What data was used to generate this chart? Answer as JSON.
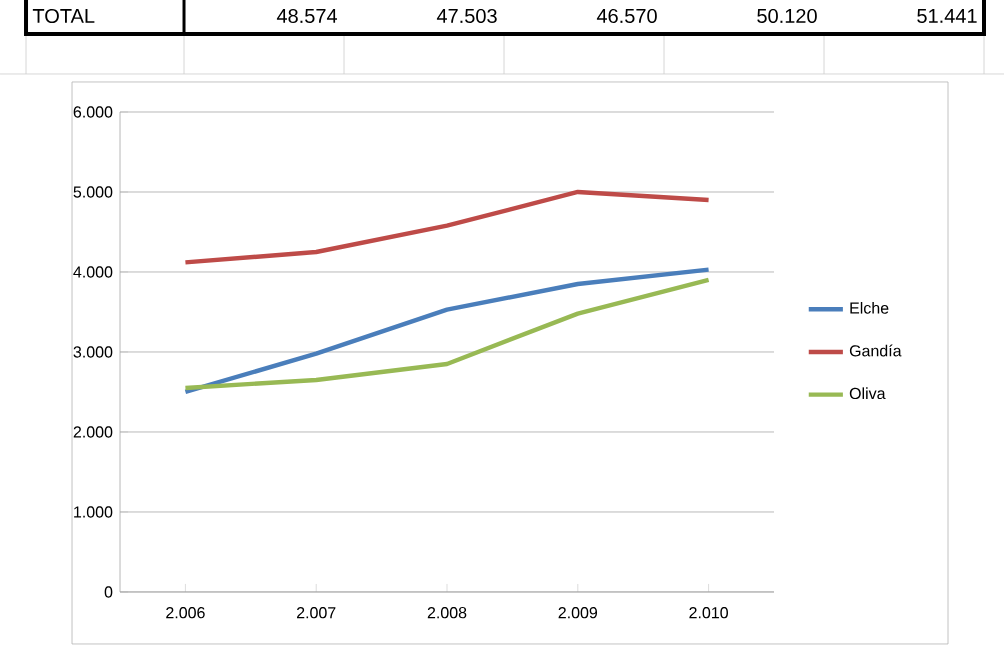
{
  "chart_data": {
    "type": "line",
    "categories": [
      "2.006",
      "2.007",
      "2.008",
      "2.009",
      "2.010"
    ],
    "series": [
      {
        "name": "Elche",
        "color": "#4a7ebb",
        "values": [
          2500,
          2980,
          3530,
          3850,
          4030
        ]
      },
      {
        "name": "Gandía",
        "color": "#be4b48",
        "values": [
          4120,
          4250,
          4580,
          5000,
          4900
        ]
      },
      {
        "name": "Oliva",
        "color": "#98b954",
        "values": [
          2550,
          2650,
          2850,
          3480,
          3900
        ]
      }
    ],
    "ylim": [
      0,
      6000
    ],
    "yticks": [
      0,
      {
        "value": 1000,
        "label": "1.000"
      },
      {
        "value": 2000,
        "label": "2.000"
      },
      {
        "value": 3000,
        "label": "3.000"
      },
      {
        "value": 4000,
        "label": "4.000"
      },
      {
        "value": 5000,
        "label": "5.000"
      },
      {
        "value": 6000,
        "label": "6.000"
      }
    ],
    "grid": "y",
    "legend": "right",
    "marker": "none",
    "line_style": "solid",
    "annotations": [
      "TOTAL",
      "48.574",
      "47.503",
      "46.570",
      "50.120",
      "51.441"
    ]
  }
}
